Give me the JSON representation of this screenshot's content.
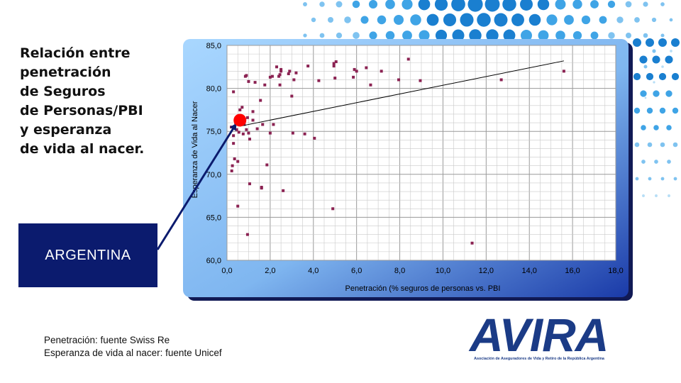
{
  "slide": {
    "title_lines": [
      "Relación entre",
      "penetración",
      "de Seguros",
      "de Personas/PBI",
      "y esperanza",
      "de vida al nacer."
    ],
    "country_label": "ARGENTINA",
    "source_lines": [
      "Penetración: fuente Swiss Re",
      "Esperanza de vida al nacer: fuente Unicef"
    ],
    "logo_text": "AVIRA",
    "logo_subtitle": "Asociación de Aseguradores de Vida y Retiro de la República Argentina"
  },
  "colors": {
    "accent_blue": "#1a7fd0",
    "dark_blue": "#0b1b6e",
    "point_color": "#8b2252",
    "highlight_color": "#ff0000",
    "frame_gradient_dark": "#1a3aa8",
    "frame_gradient_light": "#a9d7ff"
  },
  "chart_data": {
    "type": "scatter",
    "title": "",
    "xlabel": "Penetración (% seguros de personas vs. PBI",
    "ylabel": "Esperanza de Vida al Nacer",
    "xlim": [
      0,
      18
    ],
    "ylim": [
      60,
      85
    ],
    "x_ticks": [
      "0,0",
      "2,0",
      "4,0",
      "6,0",
      "8,0",
      "10,0",
      "12,0",
      "14,0",
      "16,0",
      "18,0"
    ],
    "y_ticks": [
      "60,0",
      "65,0",
      "70,0",
      "75,0",
      "80,0",
      "85,0"
    ],
    "grid": true,
    "series": [
      {
        "points": [
          [
            0.2,
            75.5
          ],
          [
            0.22,
            70.4
          ],
          [
            0.25,
            71.0
          ],
          [
            0.3,
            73.6
          ],
          [
            0.3,
            74.5
          ],
          [
            0.35,
            71.8
          ],
          [
            0.3,
            79.6
          ],
          [
            0.4,
            76.0
          ],
          [
            0.45,
            75.2
          ],
          [
            0.5,
            66.3
          ],
          [
            0.5,
            71.5
          ],
          [
            0.55,
            74.9
          ],
          [
            0.6,
            77.5
          ],
          [
            0.7,
            77.8
          ],
          [
            0.75,
            74.7
          ],
          [
            0.8,
            75.8
          ],
          [
            0.85,
            81.4
          ],
          [
            0.9,
            81.5
          ],
          [
            0.9,
            75.2
          ],
          [
            0.95,
            63.0
          ],
          [
            0.95,
            76.6
          ],
          [
            1.0,
            80.8
          ],
          [
            1.0,
            74.8
          ],
          [
            1.05,
            74.1
          ],
          [
            1.05,
            68.9
          ],
          [
            1.2,
            76.3
          ],
          [
            1.2,
            77.3
          ],
          [
            1.3,
            80.7
          ],
          [
            1.4,
            75.3
          ],
          [
            1.55,
            78.6
          ],
          [
            1.6,
            68.4
          ],
          [
            1.6,
            68.5
          ],
          [
            1.65,
            75.8
          ],
          [
            1.75,
            80.4
          ],
          [
            1.85,
            71.1
          ],
          [
            2.0,
            81.3
          ],
          [
            2.0,
            74.8
          ],
          [
            2.1,
            81.4
          ],
          [
            2.15,
            75.8
          ],
          [
            2.3,
            82.5
          ],
          [
            2.4,
            81.4
          ],
          [
            2.45,
            81.6
          ],
          [
            2.45,
            80.4
          ],
          [
            2.5,
            82.2
          ],
          [
            2.5,
            82.0
          ],
          [
            2.6,
            68.1
          ],
          [
            2.85,
            81.7
          ],
          [
            2.9,
            82.0
          ],
          [
            3.0,
            79.1
          ],
          [
            3.05,
            74.8
          ],
          [
            3.1,
            81.0
          ],
          [
            3.2,
            81.8
          ],
          [
            3.6,
            74.7
          ],
          [
            3.75,
            82.6
          ],
          [
            4.05,
            74.2
          ],
          [
            4.25,
            80.9
          ],
          [
            4.9,
            66.0
          ],
          [
            4.95,
            82.6
          ],
          [
            4.95,
            82.9
          ],
          [
            5.0,
            81.2
          ],
          [
            5.05,
            83.1
          ],
          [
            5.85,
            81.3
          ],
          [
            5.9,
            82.2
          ],
          [
            6.0,
            82.0
          ],
          [
            6.45,
            82.4
          ],
          [
            6.65,
            80.4
          ],
          [
            7.15,
            82.0
          ],
          [
            7.95,
            81.0
          ],
          [
            8.4,
            83.4
          ],
          [
            8.95,
            80.9
          ],
          [
            11.35,
            62.0
          ],
          [
            12.7,
            81.0
          ],
          [
            15.6,
            82.0
          ]
        ]
      }
    ],
    "trendline": {
      "x": [
        0.6,
        15.6
      ],
      "y": [
        75.6,
        83.2
      ]
    },
    "highlight_point": {
      "x": 0.6,
      "y": 76.3
    }
  }
}
